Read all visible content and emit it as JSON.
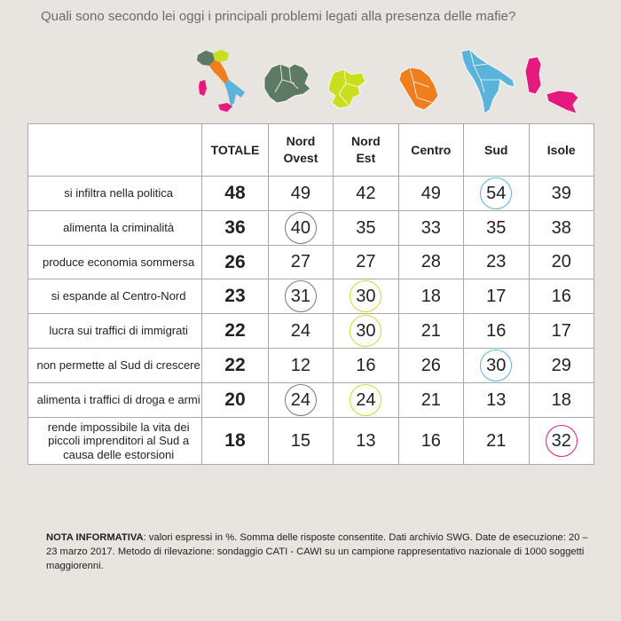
{
  "title": "Quali sono secondo lei oggi i principali problemi legati alla presenza delle mafie?",
  "colors": {
    "nord_ovest": "#5f7a64",
    "nord_est": "#c9de1f",
    "centro": "#f07d1e",
    "sud": "#5bb3da",
    "isole": "#e6197f",
    "nord_est_ring": "#cfd63a",
    "nord_ovest_ring": "#6f7f74"
  },
  "map_icons": [
    "italy-map-icon",
    "nord-ovest-map-icon",
    "nord-est-map-icon",
    "centro-map-icon",
    "sud-map-icon",
    "isole-map-icon"
  ],
  "chart_data": {
    "type": "table",
    "columns": [
      {
        "key": "totale",
        "label": "TOTALE"
      },
      {
        "key": "nord_ovest",
        "label": "Nord Ovest"
      },
      {
        "key": "nord_est",
        "label": "Nord Est"
      },
      {
        "key": "centro",
        "label": "Centro"
      },
      {
        "key": "sud",
        "label": "Sud"
      },
      {
        "key": "isole",
        "label": "Isole"
      }
    ],
    "rows": [
      {
        "label": "si infiltra nella politica",
        "values": [
          48,
          49,
          42,
          49,
          54,
          39
        ],
        "highlight": [
          4
        ]
      },
      {
        "label": "alimenta la criminalità",
        "values": [
          36,
          40,
          35,
          33,
          35,
          38
        ],
        "highlight": [
          1
        ]
      },
      {
        "label": "produce economia sommersa",
        "values": [
          26,
          27,
          27,
          28,
          23,
          20
        ],
        "highlight": []
      },
      {
        "label": "si espande al Centro-Nord",
        "values": [
          23,
          31,
          30,
          18,
          17,
          16
        ],
        "highlight": [
          1,
          2
        ]
      },
      {
        "label": "lucra sui traffici di immigrati",
        "values": [
          22,
          24,
          30,
          21,
          16,
          17
        ],
        "highlight": [
          2
        ]
      },
      {
        "label": "non permette al Sud di crescere",
        "values": [
          22,
          12,
          16,
          26,
          30,
          29
        ],
        "highlight": [
          4
        ]
      },
      {
        "label": "alimenta i traffici di droga e armi",
        "values": [
          20,
          24,
          24,
          21,
          13,
          18
        ],
        "highlight": [
          1,
          2
        ]
      },
      {
        "label": "rende impossibile la vita dei piccoli imprenditori al Sud a causa delle estorsioni",
        "values": [
          18,
          15,
          13,
          16,
          21,
          32
        ],
        "highlight": [
          5
        ]
      }
    ]
  },
  "note": {
    "label": "NOTA INFORMATIVA",
    "text": ": valori espressi in %. Somma delle risposte consentite. Dati archivio SWG. Date de esecuzione: 20 – 23 marzo 2017. Metodo di rilevazione: sondaggio CATI - CAWI su un campione rappresentativo nazionale di 1000 soggetti maggiorenni."
  }
}
